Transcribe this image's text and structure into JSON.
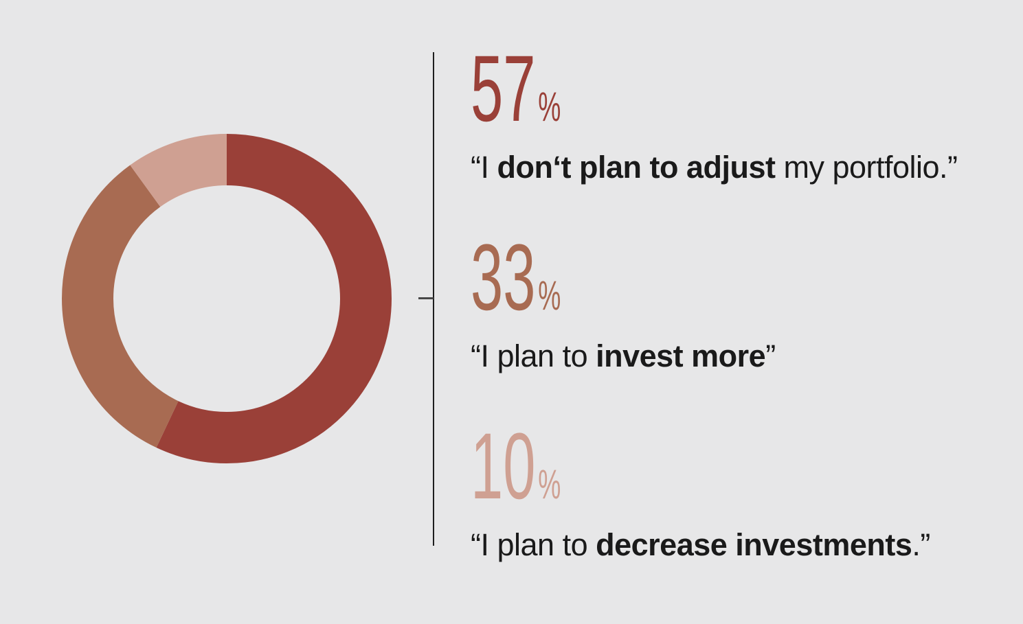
{
  "chart_data": {
    "type": "pie",
    "variant": "donut",
    "title": "",
    "slices": [
      {
        "label": "“I don‘t plan to adjust my portfolio.”",
        "value": 57,
        "color": "#9A4038"
      },
      {
        "label": "“I plan to invest more”",
        "value": 33,
        "color": "#A86B52"
      },
      {
        "label": "“I plan to decrease investments.”",
        "value": 10,
        "color": "#CFA092"
      }
    ],
    "start_angle_deg": 0,
    "direction": "clockwise",
    "inner_radius_ratio": 0.69,
    "legend_position": "right-callout-list",
    "background": "#E7E7E8"
  },
  "sections": [
    {
      "value": "57",
      "percent_sign": "%",
      "color": "#9A4038",
      "quote": {
        "pre": "“I ",
        "bold": "don‘t plan to adjust",
        "post": " my portfolio.”"
      }
    },
    {
      "value": "33",
      "percent_sign": "%",
      "color": "#A86B52",
      "quote": {
        "pre": "“I plan to ",
        "bold": "invest more",
        "post": "”"
      }
    },
    {
      "value": "10",
      "percent_sign": "%",
      "color": "#CFA092",
      "quote": {
        "pre": "“I plan to ",
        "bold": "decrease investments",
        "post": ".”"
      }
    }
  ],
  "colors": {
    "background": "#E7E7E8",
    "divider": "#1E1E1E",
    "tick": "#474747",
    "quote_text": "#1A1A1A"
  }
}
